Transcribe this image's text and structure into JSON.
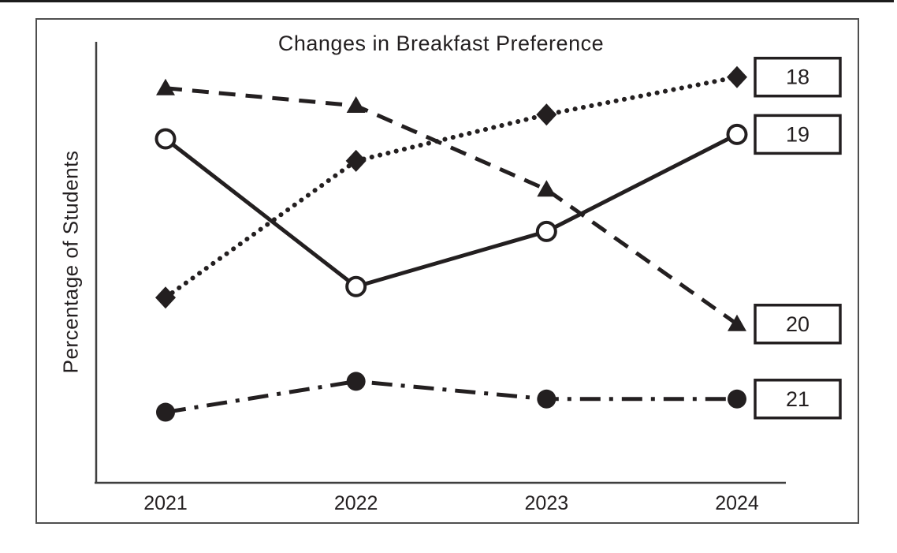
{
  "colors": {
    "ink": "#231f20",
    "axis": "#3f3f3f",
    "background": "#ffffff"
  },
  "chart_data": {
    "type": "line",
    "title": "Changes in Breakfast Preference",
    "xlabel": "",
    "ylabel": "Percentage of Students",
    "categories": [
      "2021",
      "2022",
      "2023",
      "2024"
    ],
    "y_axis": {
      "tick_labels": [],
      "note": "no numeric ticks shown; values estimated on 0-100 relative scale from pixel positions"
    },
    "grid": false,
    "legend": "end-labels-in-boxes",
    "series": [
      {
        "name": "diamond-dotted",
        "end_label": "18",
        "marker": "diamond",
        "line_style": "dotted",
        "values": [
          42,
          73,
          83.5,
          92
        ]
      },
      {
        "name": "open-circle-solid",
        "end_label": "19",
        "marker": "circle-open",
        "line_style": "solid",
        "values": [
          78,
          44.5,
          57,
          79
        ]
      },
      {
        "name": "triangle-dashed",
        "end_label": "20",
        "marker": "triangle",
        "line_style": "dashed",
        "values": [
          89.5,
          85.5,
          66.5,
          36
        ]
      },
      {
        "name": "filled-circle-dashdot",
        "end_label": "21",
        "marker": "circle-filled",
        "line_style": "dashdot",
        "values": [
          16,
          23,
          19,
          19
        ]
      }
    ]
  }
}
